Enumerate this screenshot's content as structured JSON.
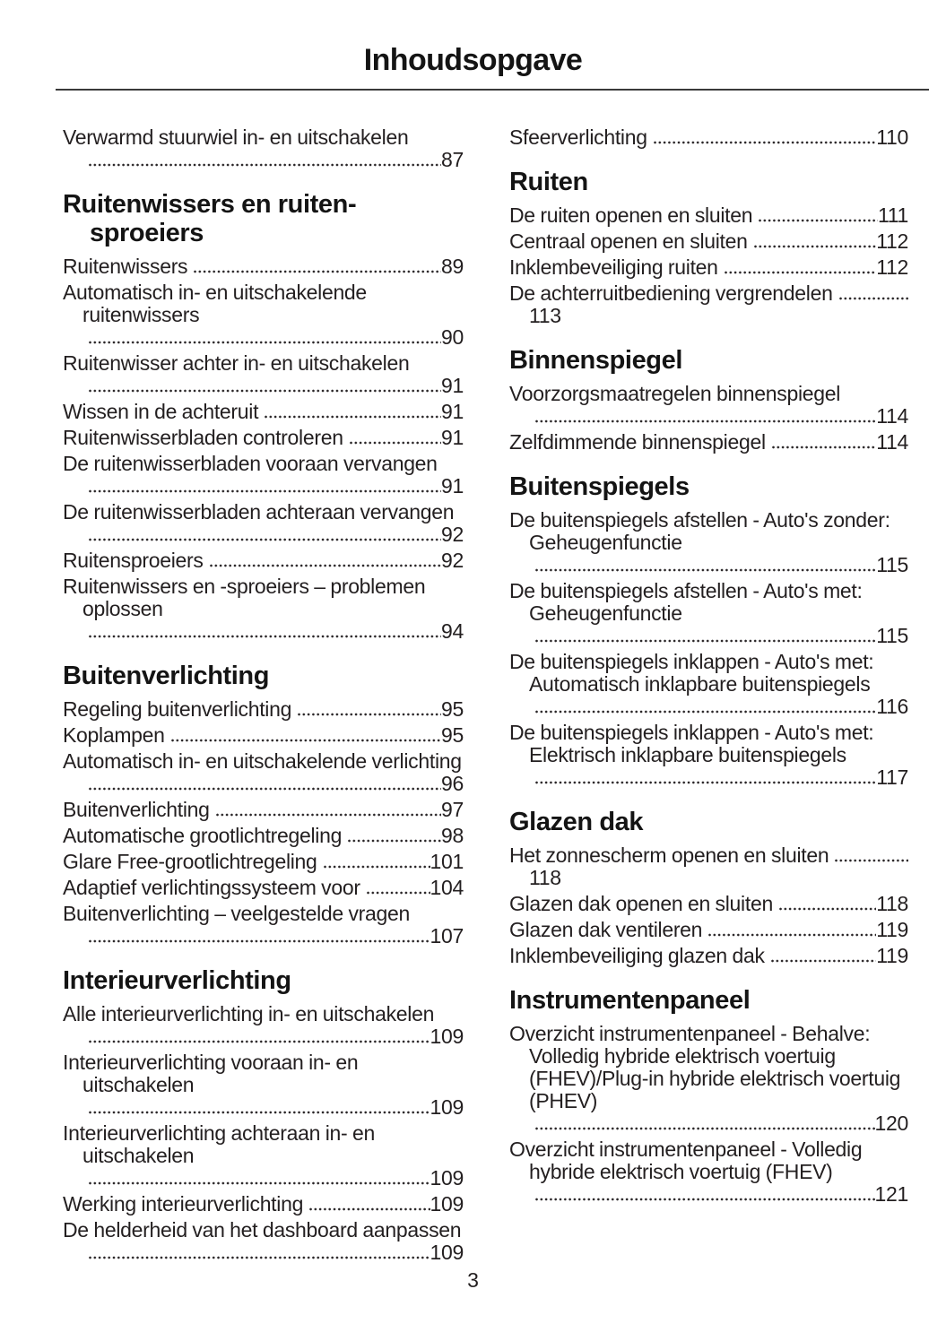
{
  "page": {
    "title": "Inhoudsopgave",
    "page_number": "3"
  },
  "toc": {
    "columns": [
      {
        "side": "left",
        "sections": [
          {
            "heading": null,
            "entries": [
              {
                "text": "Verwarmd stuurwiel in- en uitschakelen",
                "page": "87"
              }
            ]
          },
          {
            "heading": "Ruitenwissers en ruiten-sproeiers",
            "entries": [
              {
                "text": "Ruitenwissers",
                "page": "89"
              },
              {
                "text": "Automatisch in- en uitschakelende ruitenwissers",
                "page": "90"
              },
              {
                "text": "Ruitenwisser achter in- en uitschakelen",
                "page": "91"
              },
              {
                "text": "Wissen in de achteruit",
                "page": "91"
              },
              {
                "text": "Ruitenwisserbladen controleren",
                "page": "91"
              },
              {
                "text": "De ruitenwisserbladen vooraan vervangen",
                "page": "91"
              },
              {
                "text": "De ruitenwisserbladen achteraan vervangen",
                "page": "92"
              },
              {
                "text": "Ruitensproeiers",
                "page": "92"
              },
              {
                "text": "Ruitenwissers en -sproeiers – problemen oplossen",
                "page": "94"
              }
            ]
          },
          {
            "heading": "Buitenverlichting",
            "entries": [
              {
                "text": "Regeling buitenverlichting",
                "page": "95"
              },
              {
                "text": "Koplampen",
                "page": "95"
              },
              {
                "text": "Automatisch in- en uitschakelende verlichting",
                "page": "96"
              },
              {
                "text": "Buitenverlichting",
                "page": "97"
              },
              {
                "text": "Automatische grootlichtregeling",
                "page": "98"
              },
              {
                "text": "Glare Free-grootlichtregeling",
                "page": "101"
              },
              {
                "text": "Adaptief verlichtingssysteem voor",
                "page": "104"
              },
              {
                "text": "Buitenverlichting – veelgestelde vragen",
                "page": "107"
              }
            ]
          },
          {
            "heading": "Interieurverlichting",
            "entries": [
              {
                "text": "Alle interieurverlichting in- en uitschakelen",
                "page": "109"
              },
              {
                "text": "Interieurverlichting vooraan in- en uitschakelen",
                "page": "109"
              },
              {
                "text": "Interieurverlichting achteraan in- en uitschakelen",
                "page": "109"
              },
              {
                "text": "Werking interieurverlichting",
                "page": "109"
              },
              {
                "text": "De helderheid van het dashboard aanpassen",
                "page": "109"
              }
            ]
          }
        ]
      },
      {
        "side": "right",
        "sections": [
          {
            "heading": null,
            "entries": [
              {
                "text": "Sfeerverlichting",
                "page": "110"
              }
            ]
          },
          {
            "heading": "Ruiten",
            "entries": [
              {
                "text": "De ruiten openen en sluiten",
                "page": "111"
              },
              {
                "text": "Centraal openen en sluiten",
                "page": "112"
              },
              {
                "text": "Inklembeveiliging ruiten",
                "page": "112"
              },
              {
                "text": "De achterruitbediening vergrendelen",
                "page": "113"
              }
            ]
          },
          {
            "heading": "Binnenspiegel",
            "entries": [
              {
                "text": "Voorzorgsmaatregelen binnenspiegel",
                "page": "114"
              },
              {
                "text": "Zelfdimmende binnenspiegel",
                "page": "114"
              }
            ]
          },
          {
            "heading": "Buitenspiegels",
            "entries": [
              {
                "text": "De buitenspiegels afstellen - Auto's zonder: Geheugenfunctie",
                "page": "115"
              },
              {
                "text": "De buitenspiegels afstellen - Auto's met: Geheugenfunctie",
                "page": "115"
              },
              {
                "text": "De buitenspiegels inklappen - Auto's met: Automatisch inklapbare buitenspiegels",
                "page": "116"
              },
              {
                "text": "De buitenspiegels inklappen - Auto's met: Elektrisch inklapbare buitenspiegels",
                "page": "117"
              }
            ]
          },
          {
            "heading": "Glazen dak",
            "entries": [
              {
                "text": "Het zonnescherm openen en sluiten",
                "page": "118"
              },
              {
                "text": "Glazen dak openen en sluiten",
                "page": "118"
              },
              {
                "text": "Glazen dak ventileren",
                "page": "119"
              },
              {
                "text": "Inklembeveiliging glazen dak",
                "page": "119"
              }
            ]
          },
          {
            "heading": "Instrumentenpaneel",
            "entries": [
              {
                "text": "Overzicht instrumentenpaneel - Behalve: Volledig hybride elektrisch voertuig (FHEV)/Plug-in hybride elektrisch voertuig (PHEV)",
                "page": "120"
              },
              {
                "text": "Overzicht instrumentenpaneel - Volledig hybride elektrisch voertuig (FHEV)",
                "page": "121"
              }
            ]
          }
        ]
      }
    ]
  }
}
